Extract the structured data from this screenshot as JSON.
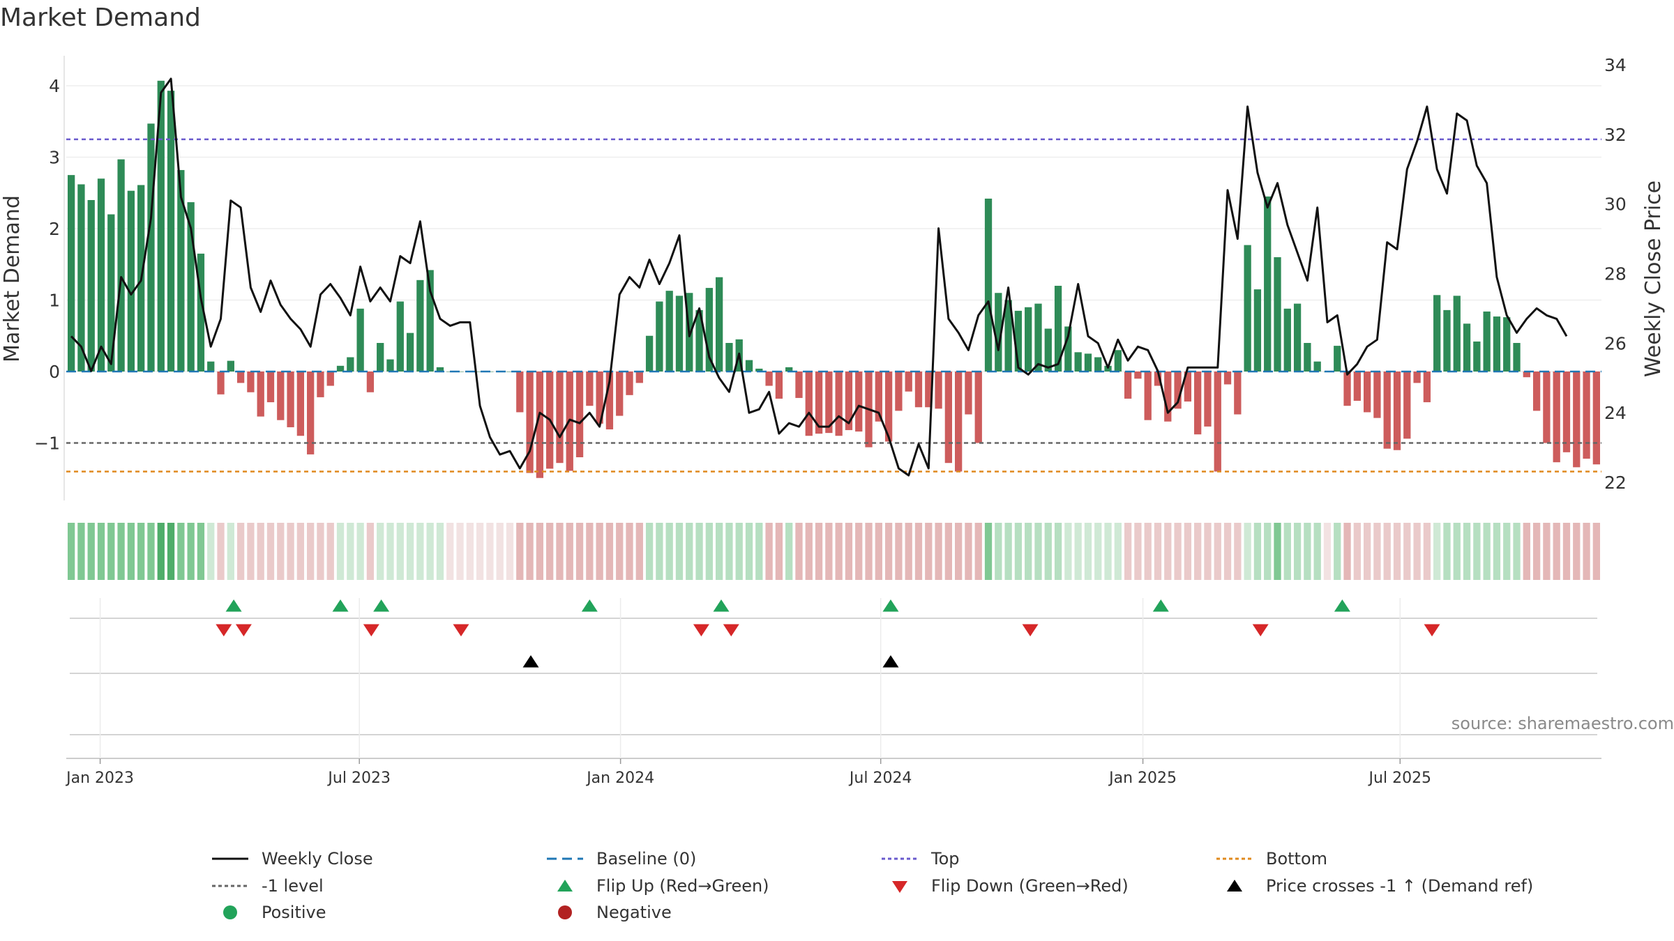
{
  "title": "Market Demand",
  "source": "source: sharemaestro.com",
  "colors": {
    "positive": "#2e8b57",
    "negative": "#cd5c5c",
    "price": "#111111",
    "baseline": "#1f77b4",
    "top": "#6a5acd",
    "bottom": "#e08a1e",
    "minus1": "#666666",
    "flip_up": "#22a35a",
    "flip_down": "#d62728",
    "cross": "#000000"
  },
  "chart_data": {
    "type": "bar",
    "title": "Market Demand",
    "ylabel": "Market Demand",
    "y2label": "Weekly Close Price",
    "ylim": [
      -1.8,
      4.3
    ],
    "y2lim": [
      21.6,
      34.3
    ],
    "yticks": [
      "4",
      "3",
      "2",
      "1",
      "0",
      "−1"
    ],
    "y2ticks": [
      "34",
      "32",
      "30",
      "28",
      "26",
      "24",
      "22"
    ],
    "top_level": 3.25,
    "bottom_level": -1.4,
    "minus1_level": -1,
    "x_dates": [
      "Jan 2023",
      "Jul 2023",
      "Jan 2024",
      "Jul 2024",
      "Jan 2025",
      "Jul 2025"
    ],
    "x_date_index": [
      2.9,
      28.9,
      55.1,
      81.2,
      107.5,
      133.3
    ],
    "demand": [
      2.75,
      2.62,
      2.4,
      2.7,
      2.2,
      2.97,
      2.53,
      2.61,
      3.47,
      4.07,
      3.93,
      2.82,
      2.37,
      1.65,
      0.14,
      -0.32,
      0.15,
      -0.16,
      -0.29,
      -0.63,
      -0.43,
      -0.68,
      -0.78,
      -0.9,
      -1.16,
      -0.36,
      -0.2,
      0.08,
      0.2,
      0.88,
      -0.29,
      0.4,
      0.17,
      0.98,
      0.54,
      1.28,
      1.42,
      0.06,
      0,
      0,
      0,
      0,
      0,
      0,
      0,
      -0.57,
      -1.42,
      -1.49,
      -1.36,
      -1.28,
      -1.39,
      -1.2,
      -0.48,
      -0.73,
      -0.81,
      -0.62,
      -0.33,
      -0.16,
      0.5,
      0.98,
      1.13,
      1.06,
      1.1,
      0.86,
      1.17,
      1.32,
      0.4,
      0.45,
      0.16,
      0.04,
      -0.2,
      -0.38,
      0.06,
      -0.37,
      -0.9,
      -0.87,
      -0.86,
      -0.9,
      -0.82,
      -0.84,
      -1.06,
      -0.7,
      -0.98,
      -0.55,
      -0.28,
      -0.5,
      -0.5,
      -0.52,
      -1.28,
      -1.4,
      -0.6,
      -1,
      2.42,
      1.1,
      1.0,
      0.85,
      0.9,
      0.95,
      0.6,
      1.2,
      0.63,
      0.27,
      0.25,
      0.2,
      0.08,
      0.3,
      -0.38,
      -0.1,
      -0.68,
      -0.2,
      -0.7,
      -0.52,
      -0.42,
      -0.88,
      -0.77,
      -1.4,
      -0.18,
      -0.6,
      1.77,
      1.15,
      2.45,
      1.6,
      0.88,
      0.95,
      0.4,
      0.14,
      0,
      0.36,
      -0.48,
      -0.41,
      -0.57,
      -0.65,
      -1.08,
      -1.1,
      -0.94,
      -0.16,
      -0.43,
      1.07,
      0.86,
      1.06,
      0.67,
      0.42,
      0.84,
      0.77,
      0.76,
      0.4,
      -0.08,
      -0.55,
      -1.0,
      -1.27,
      -1.13,
      -1.34,
      -1.22,
      -1.3
    ],
    "price": [
      26.2,
      25.9,
      25.2,
      25.9,
      25.4,
      27.9,
      27.4,
      27.8,
      29.6,
      33.2,
      33.6,
      30.2,
      29.3,
      27.3,
      25.9,
      26.7,
      30.1,
      29.9,
      27.6,
      26.9,
      27.8,
      27.1,
      26.7,
      26.4,
      25.9,
      27.4,
      27.7,
      27.3,
      26.8,
      28.2,
      27.2,
      27.6,
      27.2,
      28.5,
      28.3,
      29.5,
      27.5,
      26.7,
      26.5,
      26.6,
      26.6,
      24.2,
      23.3,
      22.8,
      22.9,
      22.4,
      22.9,
      24.0,
      23.8,
      23.3,
      23.8,
      23.7,
      24.0,
      23.6,
      24.9,
      27.4,
      27.9,
      27.6,
      28.4,
      27.7,
      28.3,
      29.1,
      26.2,
      27.0,
      25.6,
      25.0,
      24.6,
      25.7,
      24.0,
      24.1,
      24.6,
      23.4,
      23.7,
      23.6,
      24.0,
      23.6,
      23.6,
      23.9,
      23.7,
      24.2,
      24.1,
      24.0,
      23.3,
      22.4,
      22.2,
      23.1,
      22.4,
      29.3,
      26.7,
      26.3,
      25.8,
      26.8,
      27.2,
      25.8,
      27.6,
      25.3,
      25.1,
      25.4,
      25.3,
      25.4,
      26.2,
      27.7,
      26.2,
      26.0,
      25.3,
      26.1,
      25.5,
      25.9,
      25.8,
      25.2,
      24.0,
      24.3,
      25.3,
      25.3,
      25.3,
      25.3,
      30.4,
      29.0,
      32.8,
      30.9,
      29.9,
      30.6,
      29.4,
      28.6,
      27.8,
      29.9,
      26.6,
      26.8,
      25.1,
      25.4,
      25.9,
      26.1,
      28.9,
      28.7,
      31.0,
      31.8,
      32.8,
      31.0,
      30.3,
      32.6,
      32.4,
      31.1,
      30.6,
      27.9,
      26.8,
      26.3,
      26.7,
      27.0,
      26.8,
      26.7,
      26.2
    ],
    "shade_levels": [
      3,
      3,
      3,
      3,
      3,
      3,
      3,
      3,
      3,
      4,
      4,
      3,
      3,
      3,
      1,
      1,
      1,
      1,
      1,
      1,
      1,
      1,
      1,
      1,
      1,
      1,
      1,
      1,
      1,
      1,
      1,
      1,
      1,
      1,
      1,
      1,
      1,
      1,
      0,
      0,
      0,
      0,
      0,
      0,
      0,
      2,
      2,
      2,
      2,
      2,
      2,
      2,
      2,
      2,
      2,
      2,
      2,
      2,
      2,
      2,
      2,
      2,
      2,
      2,
      2,
      2,
      2,
      2,
      2,
      2,
      2,
      2,
      2,
      2,
      2,
      2,
      2,
      2,
      2,
      2,
      2,
      2,
      2,
      2,
      2,
      2,
      2,
      2,
      2,
      2,
      2,
      2,
      3,
      2,
      2,
      2,
      2,
      2,
      2,
      2,
      1,
      1,
      1,
      1,
      1,
      1,
      1,
      1,
      1,
      1,
      1,
      1,
      1,
      1,
      1,
      1,
      1,
      1,
      1,
      2,
      2,
      3,
      2,
      2,
      2,
      2,
      2,
      2,
      2,
      1,
      1,
      1,
      1,
      1,
      1,
      1,
      1,
      1,
      2,
      2,
      2,
      2,
      2,
      2,
      2,
      2,
      2,
      2,
      2,
      2,
      2,
      2,
      2,
      2,
      2,
      2
    ],
    "flip_up_idx": [
      16.3,
      27.0,
      31.1,
      52.0,
      65.2,
      82.2,
      109.3,
      127.5
    ],
    "flip_down_idx": [
      15.3,
      17.3,
      30.1,
      39.1,
      63.2,
      66.2,
      96.2,
      119.3,
      136.5
    ],
    "cross_up_idx": [
      46.1,
      82.2
    ]
  },
  "legend": [
    {
      "label": "Weekly Close",
      "symbol": "line-solid"
    },
    {
      "label": "Baseline (0)",
      "symbol": "line-dash"
    },
    {
      "label": "Top",
      "symbol": "line-dot-top"
    },
    {
      "label": "Bottom",
      "symbol": "line-dot-bottom"
    },
    {
      "label": "-1 level",
      "symbol": "line-dot-minus1"
    },
    {
      "label": "Flip Up (Red→Green)",
      "symbol": "triangle-up-green"
    },
    {
      "label": "Flip Down (Green→Red)",
      "symbol": "triangle-down-red"
    },
    {
      "label": "Price crosses -1 ↑ (Demand ref)",
      "symbol": "triangle-up-black"
    },
    {
      "label": "Positive",
      "symbol": "dot-green"
    },
    {
      "label": "Negative",
      "symbol": "dot-red"
    }
  ]
}
